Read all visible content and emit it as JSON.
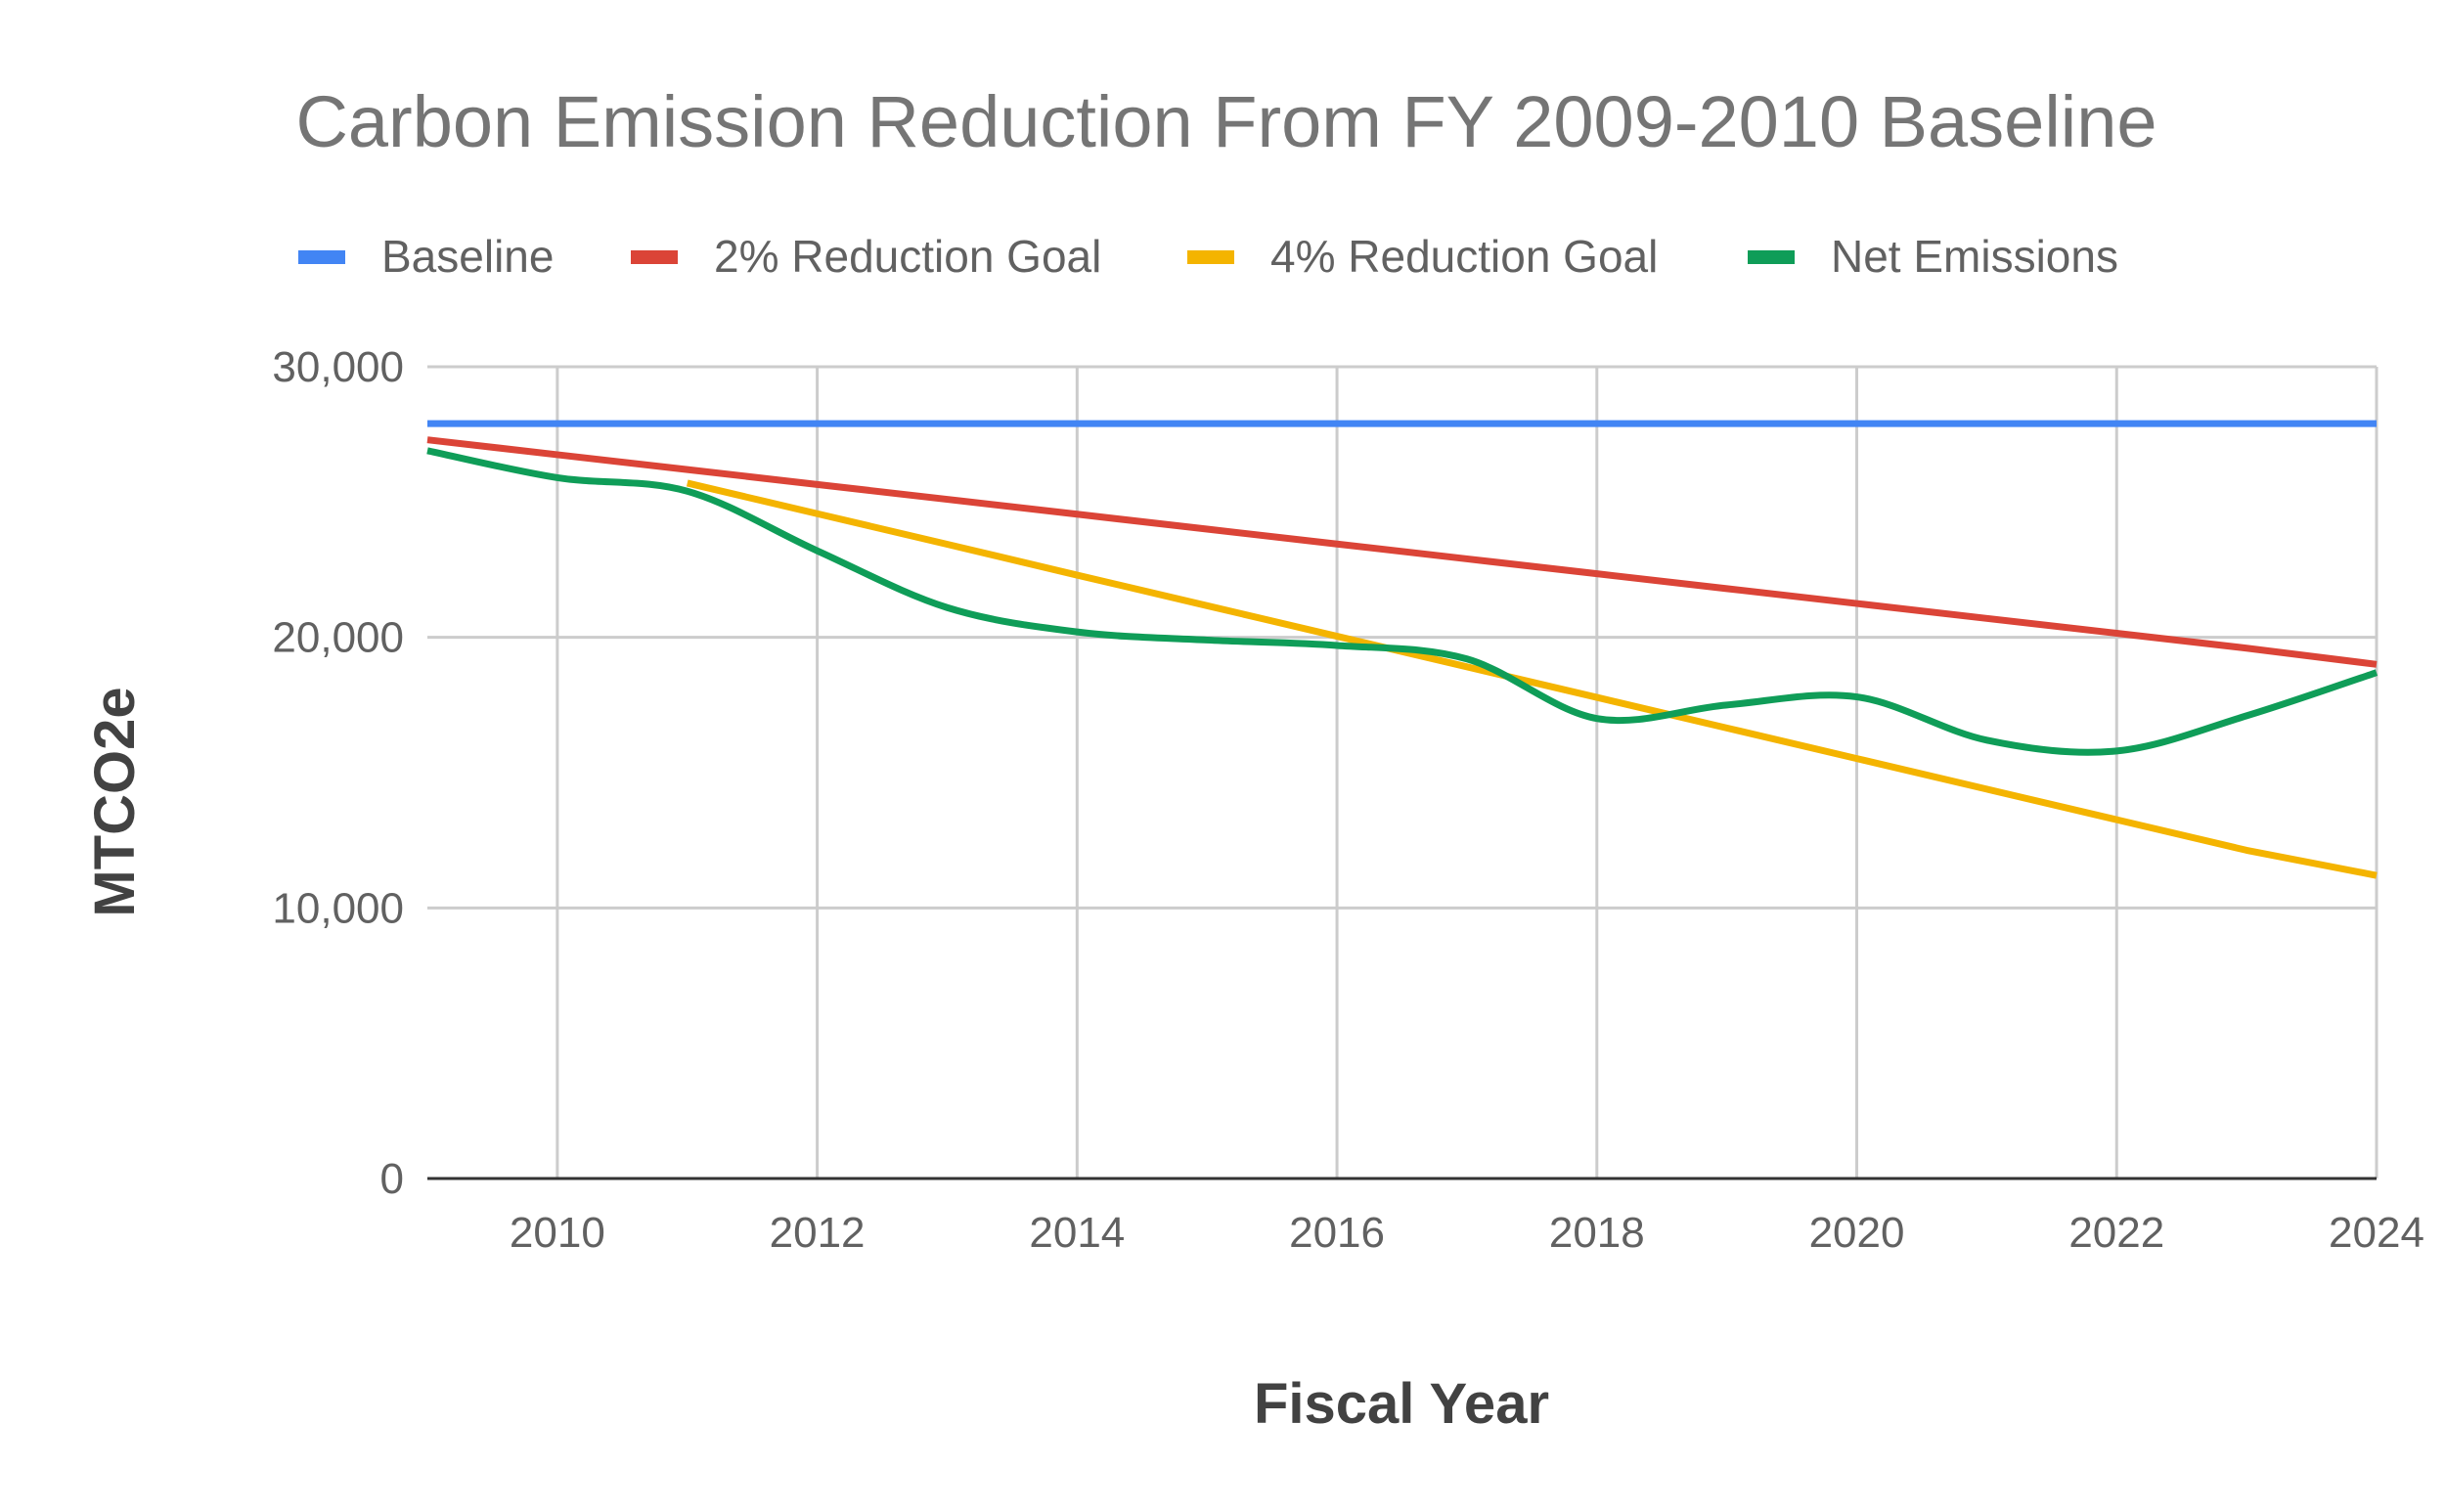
{
  "chart_data": {
    "type": "line",
    "title": "Carbon Emission Reduction From FY 2009-2010 Baseline",
    "xlabel": "Fiscal Year",
    "ylabel": "MTCO2e",
    "xlim": [
      2009,
      2024
    ],
    "ylim": [
      0,
      30000
    ],
    "x_ticks": [
      "2010",
      "2012",
      "2014",
      "2016",
      "2018",
      "2020",
      "2022",
      "2024"
    ],
    "y_ticks": [
      "0",
      "10,000",
      "20,000",
      "30,000"
    ],
    "grid": true,
    "legend_position": "top",
    "series": [
      {
        "name": "Baseline",
        "color": "#4285f4",
        "x": [
          2009,
          2024
        ],
        "y": [
          27900,
          27900
        ]
      },
      {
        "name": "2% Reduction Goal",
        "color": "#db4437",
        "x": [
          2009,
          2010,
          2011,
          2012,
          2013,
          2014,
          2015,
          2016,
          2017,
          2018,
          2019,
          2020,
          2021,
          2022,
          2023,
          2024
        ],
        "y": [
          27300,
          26750,
          26200,
          25650,
          25100,
          24550,
          24000,
          23450,
          22900,
          22350,
          21800,
          21250,
          20700,
          20150,
          19600,
          19000
        ]
      },
      {
        "name": "4% Reduction Goal",
        "color": "#f4b400",
        "x": [
          2011,
          2012,
          2013,
          2014,
          2015,
          2016,
          2017,
          2018,
          2019,
          2020,
          2021,
          2022,
          2023,
          2024
        ],
        "y": [
          25700,
          24570,
          23440,
          22300,
          21170,
          20040,
          18910,
          17780,
          16650,
          15520,
          14390,
          13260,
          12130,
          11200
        ]
      },
      {
        "name": "Net Emissions",
        "color": "#0f9d58",
        "x": [
          2009,
          2010,
          2011,
          2012,
          2013,
          2014,
          2015,
          2016,
          2017,
          2018,
          2019,
          2020,
          2021,
          2022,
          2023,
          2024
        ],
        "y": [
          26900,
          25900,
          25400,
          23200,
          21100,
          20200,
          19900,
          19700,
          19200,
          17000,
          17500,
          17800,
          16200,
          15800,
          17100,
          18700
        ]
      }
    ]
  }
}
